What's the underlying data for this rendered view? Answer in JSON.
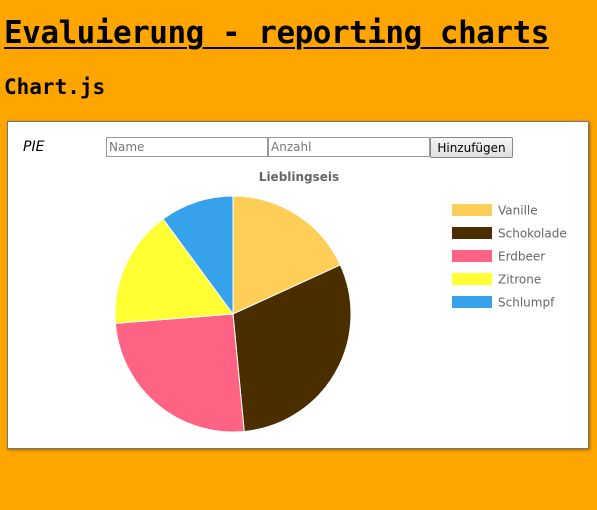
{
  "page": {
    "title": "Evaluierung - reporting charts",
    "subtitle": "Chart.js"
  },
  "panel": {
    "chart_type_label": "PIE",
    "name_placeholder": "Name",
    "count_placeholder": "Anzahl",
    "add_button_label": "Hinzufügen"
  },
  "chart_data": {
    "type": "pie",
    "title": "Lieblingseis",
    "categories": [
      "Vanille",
      "Schokolade",
      "Erdbeer",
      "Zitrone",
      "Schlumpf"
    ],
    "values": [
      18,
      30,
      25,
      16,
      10
    ],
    "colors": [
      "#FFCE56",
      "#4A2E00",
      "#FF6384",
      "#FFFF33",
      "#36A2EB"
    ],
    "legend_position": "right"
  }
}
